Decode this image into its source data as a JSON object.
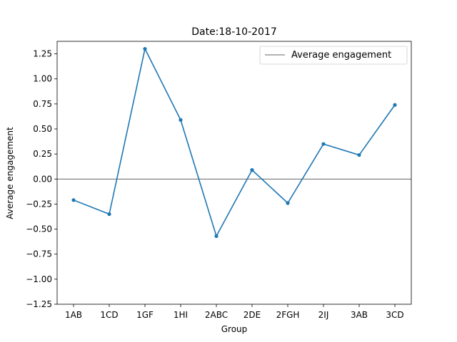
{
  "chart_data": {
    "type": "line",
    "title": "Date:18-10-2017",
    "xlabel": "Group",
    "ylabel": "Average engagement",
    "categories": [
      "1AB",
      "1CD",
      "1GF",
      "1HI",
      "2ABC",
      "2DE",
      "2FGH",
      "2IJ",
      "3AB",
      "3CD"
    ],
    "series": [
      {
        "values": [
          -0.21,
          -0.35,
          1.3,
          0.59,
          -0.57,
          0.09,
          -0.24,
          0.35,
          0.24,
          0.74
        ],
        "color": "#1f77b4"
      }
    ],
    "reference_line": {
      "name": "Average engagement",
      "y": 0,
      "color": "#333333"
    },
    "ylim": [
      -1.25,
      1.375
    ],
    "yticks": [
      -1.25,
      -1.0,
      -0.75,
      -0.5,
      -0.25,
      0.0,
      0.25,
      0.5,
      0.75,
      1.0,
      1.25
    ],
    "ytick_labels": [
      "−1.25",
      "−1.00",
      "−0.75",
      "−0.50",
      "−0.25",
      "0.00",
      "0.25",
      "0.50",
      "0.75",
      "1.00",
      "1.25"
    ],
    "grid": false,
    "legend_position": "top-right"
  }
}
